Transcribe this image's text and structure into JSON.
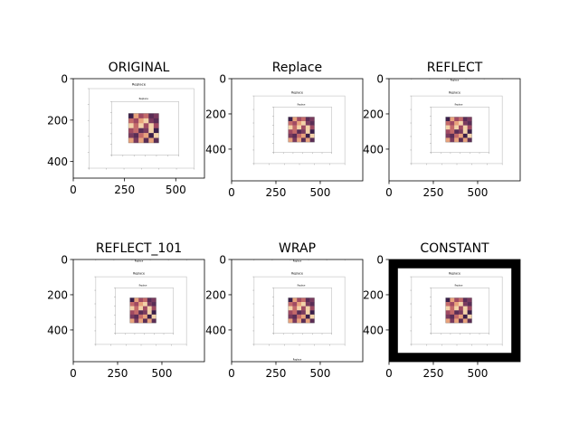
{
  "chart_data": [
    {
      "type": "image",
      "title": "ORIGINAL",
      "xlim": [
        0,
        640
      ],
      "ylim": [
        480,
        0
      ],
      "xticks": [
        0,
        250,
        500
      ],
      "yticks": [
        0,
        200,
        400
      ],
      "border_mode": "original",
      "border": 0
    },
    {
      "type": "image",
      "title": "Replace",
      "xlim": [
        0,
        740
      ],
      "ylim": [
        580,
        0
      ],
      "xticks": [
        0,
        250,
        500
      ],
      "yticks": [
        0,
        200,
        400
      ],
      "border_mode": "replicate",
      "border": 50
    },
    {
      "type": "image",
      "title": "REFLECT",
      "xlim": [
        0,
        740
      ],
      "ylim": [
        580,
        0
      ],
      "xticks": [
        0,
        250,
        500
      ],
      "yticks": [
        0,
        200,
        400
      ],
      "border_mode": "reflect",
      "border": 50
    },
    {
      "type": "image",
      "title": "REFLECT_101",
      "xlim": [
        0,
        740
      ],
      "ylim": [
        580,
        0
      ],
      "xticks": [
        0,
        250,
        500
      ],
      "yticks": [
        0,
        200,
        400
      ],
      "border_mode": "reflect",
      "border": 50
    },
    {
      "type": "image",
      "title": "WRAP",
      "xlim": [
        0,
        740
      ],
      "ylim": [
        580,
        0
      ],
      "xticks": [
        0,
        250,
        500
      ],
      "yticks": [
        0,
        200,
        400
      ],
      "border_mode": "wrap",
      "border": 50
    },
    {
      "type": "image",
      "title": "CONSTANT",
      "xlim": [
        0,
        740
      ],
      "ylim": [
        580,
        0
      ],
      "xticks": [
        0,
        250,
        500
      ],
      "yticks": [
        0,
        200,
        400
      ],
      "border_mode": "constant",
      "border": 50,
      "border_color": "#000000"
    }
  ],
  "nested_image_text": "Replace",
  "colors": {
    "frame": "#000000",
    "background": "#ffffff",
    "inner_frame": "#bfbfbf",
    "thumb_palette": [
      "#3b1f4a",
      "#7a3a5e",
      "#c46a6a",
      "#e8a27c",
      "#f3d2a8",
      "#5a2d55",
      "#a04a62"
    ]
  }
}
